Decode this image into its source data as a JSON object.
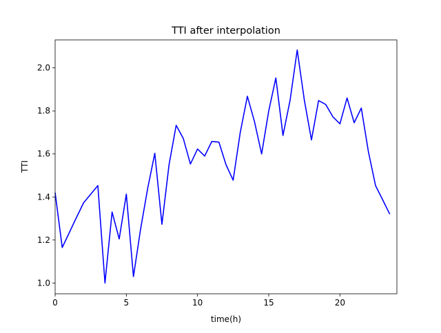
{
  "chart_data": {
    "type": "line",
    "title": "TTI after interpolation",
    "xlabel": "time(h)",
    "ylabel": "TTI",
    "xlim": [
      0,
      24
    ],
    "ylim": [
      0.95,
      2.13
    ],
    "xticks": [
      0,
      5,
      10,
      15,
      20
    ],
    "xtick_labels": [
      "0",
      "5",
      "10",
      "15",
      "20"
    ],
    "yticks": [
      1.0,
      1.2,
      1.4,
      1.6,
      1.8,
      2.0
    ],
    "ytick_labels": [
      "1.0",
      "1.2",
      "1.4",
      "1.6",
      "1.8",
      "2.0"
    ],
    "grid": false,
    "legend": "none",
    "series": [
      {
        "color": "#0000ff",
        "x": [
          0,
          0.5,
          1,
          1.5,
          2,
          2.5,
          3,
          3.5,
          4,
          4.5,
          5,
          5.5,
          6,
          6.5,
          7,
          7.5,
          8,
          8.5,
          9,
          9.5,
          10,
          10.5,
          11,
          11.5,
          12,
          12.5,
          13,
          13.5,
          14,
          14.5,
          15,
          15.5,
          16,
          16.5,
          17,
          17.5,
          18,
          18.5,
          19,
          19.5,
          20,
          20.5,
          21,
          21.5,
          22,
          22.5,
          23,
          23.5
        ],
        "values": [
          1.42,
          1.165,
          1.235,
          1.305,
          1.373,
          1.413,
          1.453,
          1.0,
          1.33,
          1.205,
          1.413,
          1.03,
          1.25,
          1.44,
          1.603,
          1.273,
          1.55,
          1.733,
          1.672,
          1.553,
          1.623,
          1.59,
          1.658,
          1.655,
          1.55,
          1.478,
          1.7,
          1.868,
          1.75,
          1.6,
          1.8,
          1.953,
          1.686,
          1.85,
          2.083,
          1.85,
          1.665,
          1.848,
          1.83,
          1.773,
          1.74,
          1.86,
          1.745,
          1.813,
          1.61,
          1.453,
          1.387,
          1.32
        ]
      }
    ]
  }
}
